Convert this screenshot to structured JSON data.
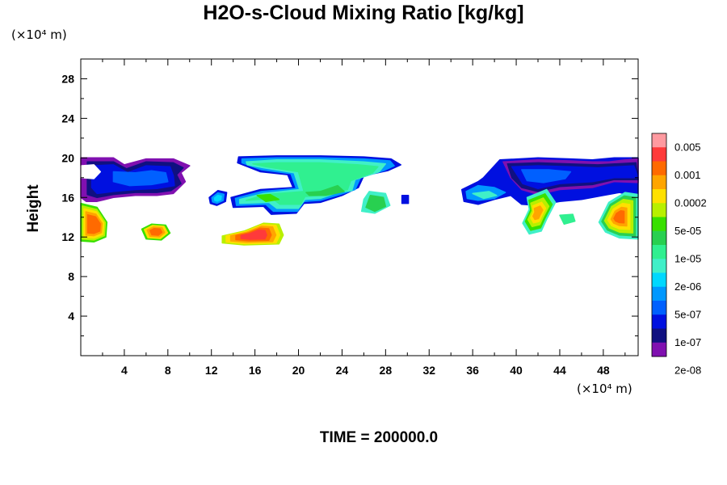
{
  "chart_data": {
    "type": "heatmap",
    "title": "H2O-s-Cloud Mixing Ratio [kg/kg]",
    "ylabel": "Height",
    "xlabel": "",
    "x_unit": "(×10⁴ m)",
    "y_unit": "(×10⁴ m)",
    "footer": "TIME = 200000.0",
    "xlim": [
      0,
      51.2
    ],
    "ylim": [
      0,
      30
    ],
    "x_ticks": [
      4,
      8,
      12,
      16,
      20,
      24,
      28,
      32,
      36,
      40,
      44,
      48
    ],
    "y_ticks": [
      4,
      8,
      12,
      16,
      20,
      24,
      28
    ],
    "colorbar": {
      "labels": [
        "0.005",
        "0.001",
        "0.0002",
        "5e-05",
        "1e-05",
        "2e-06",
        "5e-07",
        "1e-07",
        "2e-08"
      ],
      "colors_top_to_bottom": [
        "#ff9aa0",
        "#ff3a3a",
        "#ff6a00",
        "#ffa500",
        "#ffe000",
        "#b8f000",
        "#38e000",
        "#28d050",
        "#30f090",
        "#40f0c8",
        "#00d8ff",
        "#0098ff",
        "#0060ff",
        "#0010e0",
        "#101080",
        "#8010b0"
      ]
    },
    "regions": [
      {
        "name": "upper-left cloud band",
        "x": [
          0,
          10
        ],
        "y": [
          15.5,
          20
        ],
        "level": "2e-08 to 1e-07"
      },
      {
        "name": "left edge cell",
        "x": [
          0,
          2.5
        ],
        "y": [
          11.5,
          15.5
        ],
        "level": "1e-05 to 0.0002"
      },
      {
        "name": "cell near x=6",
        "x": [
          5.5,
          8
        ],
        "y": [
          11.8,
          13.2
        ],
        "level": "0.0002"
      },
      {
        "name": "small cell near x=12",
        "x": [
          11.8,
          13.5
        ],
        "y": [
          15.2,
          16.8
        ],
        "level": "5e-07"
      },
      {
        "name": "central anvil",
        "x": [
          14,
          29.5
        ],
        "y": [
          13.5,
          20.2
        ],
        "level": "2e-06 to 1e-05"
      },
      {
        "name": "lower central cell",
        "x": [
          12.8,
          18.6
        ],
        "y": [
          11.2,
          13.6
        ],
        "level": "0.0002 to 0.001"
      },
      {
        "name": "right cloud band",
        "x": [
          35,
          51.2
        ],
        "y": [
          15,
          20
        ],
        "level": "2e-08 to 5e-07"
      },
      {
        "name": "right tower",
        "x": [
          40.5,
          43.5
        ],
        "y": [
          12.2,
          16
        ],
        "level": "1e-05 to 0.0002"
      },
      {
        "name": "right edge cell",
        "x": [
          47.5,
          51.2
        ],
        "y": [
          11.8,
          16.5
        ],
        "level": "1e-05 to 0.0002"
      }
    ]
  }
}
